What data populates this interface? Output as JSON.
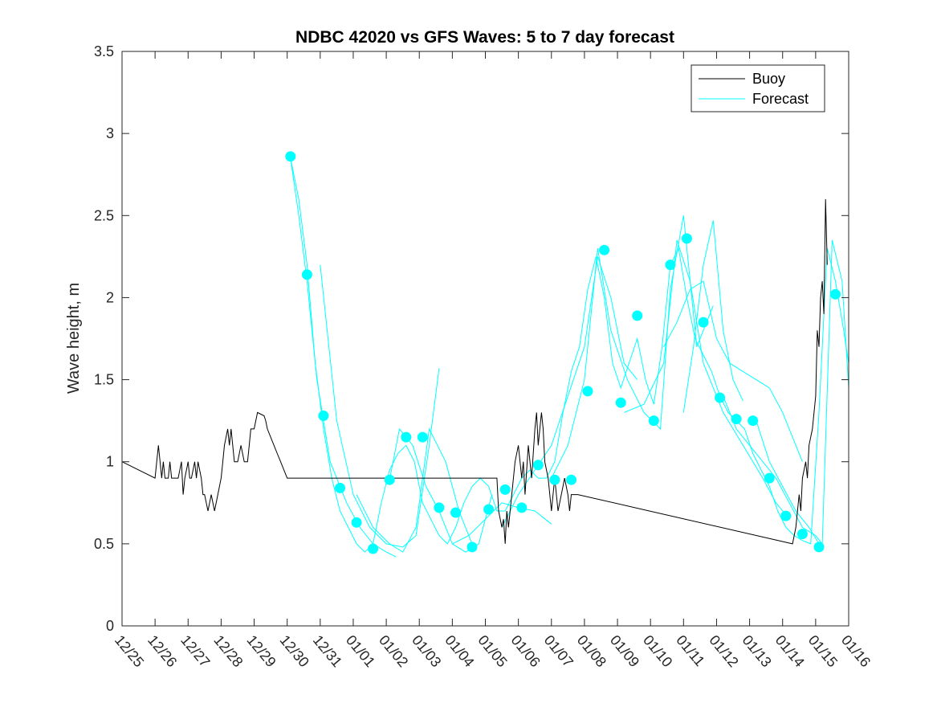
{
  "chart_data": {
    "type": "line",
    "title": "NDBC 42020 vs GFS Waves: 5 to 7 day forecast",
    "xlabel": "",
    "ylabel": "Wave height, m",
    "ylim": [
      0,
      3.5
    ],
    "yticks": [
      0,
      0.5,
      1,
      1.5,
      2,
      2.5,
      3,
      3.5
    ],
    "ytick_labels": [
      "0",
      "0.5",
      "1",
      "1.5",
      "2",
      "2.5",
      "3",
      "3.5"
    ],
    "xlim": [
      0,
      22
    ],
    "xtick_labels": [
      "12/25",
      "12/26",
      "12/27",
      "12/28",
      "12/29",
      "12/30",
      "12/31",
      "01/01",
      "01/02",
      "01/03",
      "01/04",
      "01/05",
      "01/06",
      "01/07",
      "01/08",
      "01/09",
      "01/10",
      "01/11",
      "01/12",
      "01/13",
      "01/14",
      "01/15",
      "01/16"
    ],
    "x_unit": "days since 12/25 00Z",
    "legend": {
      "position": "top-right",
      "entries": [
        "Buoy",
        "Forecast"
      ]
    },
    "colors": {
      "buoy": "#000000",
      "forecast": "#00ffff",
      "axis": "#262626"
    },
    "series": [
      {
        "name": "Buoy",
        "x": [
          0,
          1,
          1.05,
          1.1,
          1.2,
          1.25,
          1.3,
          1.4,
          1.45,
          1.5,
          1.6,
          1.7,
          1.8,
          1.85,
          1.9,
          2.0,
          2.05,
          2.1,
          2.2,
          2.25,
          2.3,
          2.4,
          2.45,
          2.5,
          2.6,
          2.7,
          2.8,
          2.9,
          3.0,
          3.05,
          3.1,
          3.2,
          3.25,
          3.3,
          3.4,
          3.5,
          3.6,
          3.7,
          3.8,
          3.85,
          3.9,
          4.0,
          4.1,
          4.2,
          4.3,
          4.35,
          4.4,
          4.5,
          4.6,
          4.7,
          4.8,
          4.9,
          5.0,
          11.35,
          11.4,
          11.5,
          11.55,
          11.6,
          11.65,
          11.7,
          11.8,
          11.9,
          12.0,
          12.1,
          12.15,
          12.2,
          12.3,
          12.4,
          12.5,
          12.55,
          12.6,
          12.7,
          12.75,
          12.8,
          12.9,
          13.0,
          13.05,
          13.1,
          13.2,
          13.3,
          13.4,
          13.5,
          13.55,
          13.6,
          13.7,
          13.8,
          20.3,
          20.4,
          20.5,
          20.55,
          20.6,
          20.7,
          20.75,
          20.8,
          20.9,
          21.0,
          21.05,
          21.1,
          21.15,
          21.2,
          21.25,
          21.3,
          21.35
        ],
        "values": [
          1.0,
          0.9,
          1.0,
          1.1,
          0.9,
          1.0,
          0.9,
          0.9,
          1.0,
          0.9,
          0.9,
          0.9,
          1.0,
          0.8,
          0.9,
          1.0,
          0.9,
          0.9,
          1.0,
          0.9,
          1.0,
          0.9,
          0.8,
          0.8,
          0.7,
          0.8,
          0.7,
          0.8,
          0.9,
          1.0,
          1.1,
          1.2,
          1.1,
          1.2,
          1.0,
          1.0,
          1.1,
          1.0,
          1.0,
          1.1,
          1.2,
          1.2,
          1.3,
          1.29,
          1.28,
          1.25,
          1.2,
          1.15,
          1.1,
          1.05,
          1.0,
          0.95,
          0.9,
          0.9,
          0.7,
          0.6,
          0.65,
          0.5,
          0.7,
          0.6,
          0.8,
          1.0,
          1.1,
          0.9,
          1.0,
          0.8,
          1.1,
          0.9,
          1.2,
          1.3,
          1.1,
          1.3,
          1.2,
          1.0,
          0.9,
          0.7,
          0.8,
          0.9,
          0.7,
          0.8,
          0.9,
          0.8,
          0.7,
          0.8,
          0.8,
          0.8,
          0.5,
          0.6,
          0.8,
          0.7,
          0.9,
          1.0,
          0.9,
          1.1,
          1.2,
          1.4,
          1.8,
          1.7,
          2.0,
          2.1,
          1.9,
          2.6,
          2.2
        ]
      },
      {
        "name": "Forecast",
        "x": [
          5.1,
          5.35,
          5.6,
          5.85,
          6.1,
          6.35,
          6.6,
          6.85,
          7.1,
          7.35,
          7.6,
          7.85,
          8.1,
          8.35,
          8.6,
          8.85,
          9.1,
          9.35,
          9.6,
          9.85,
          10.1,
          10.35,
          10.6,
          10.85,
          11.1,
          11.35,
          11.6,
          11.85,
          12.1,
          12.35,
          12.6,
          12.85,
          13.1,
          13.35,
          13.6,
          13.85,
          14.1,
          14.35,
          14.6,
          14.85,
          15.1,
          15.35,
          15.6,
          15.85,
          16.1,
          16.35,
          16.6,
          16.85,
          17.1,
          17.35,
          17.6,
          17.85,
          18.1,
          18.35,
          18.6,
          18.85,
          19.1,
          19.35,
          19.6,
          19.85,
          20.1,
          20.35,
          20.6,
          20.85,
          21.1,
          21.35,
          21.6,
          21.85,
          22.0
        ],
        "values": [
          2.85,
          2.6,
          2.2,
          1.6,
          1.2,
          0.9,
          0.7,
          0.6,
          0.5,
          0.45,
          0.5,
          0.75,
          0.95,
          1.05,
          1.1,
          1.0,
          0.75,
          0.65,
          0.55,
          0.5,
          0.6,
          0.75,
          0.85,
          0.9,
          0.85,
          0.7,
          0.7,
          0.8,
          0.9,
          0.95,
          0.9,
          0.9,
          1.0,
          1.3,
          1.55,
          1.7,
          2.05,
          2.25,
          2.0,
          1.6,
          1.45,
          1.6,
          1.75,
          1.5,
          1.35,
          1.7,
          2.2,
          2.3,
          2.0,
          1.75,
          1.65,
          1.55,
          1.4,
          1.3,
          1.25,
          1.2,
          1.05,
          0.95,
          0.85,
          0.7,
          0.6,
          0.55,
          0.52,
          0.5,
          1.3,
          2.3,
          2.1,
          1.8,
          1.6
        ]
      }
    ],
    "forecast_overlays": [
      {
        "x": [
          5.1,
          5.35,
          5.6,
          5.9,
          6.3,
          6.8,
          7.2,
          7.6,
          8.0,
          8.3
        ],
        "values": [
          2.85,
          2.5,
          2.1,
          1.5,
          1.0,
          0.75,
          0.6,
          0.5,
          0.45,
          0.42
        ]
      },
      {
        "x": [
          6.0,
          6.5,
          7.0,
          7.5,
          8.0,
          8.5,
          8.9,
          9.3,
          9.6
        ],
        "values": [
          2.2,
          1.25,
          0.8,
          0.6,
          0.5,
          0.48,
          0.55,
          1.1,
          1.57
        ]
      },
      {
        "x": [
          7.1,
          7.6,
          8.1,
          8.5,
          8.9,
          9.3,
          9.8,
          10.2,
          10.6
        ],
        "values": [
          0.8,
          0.6,
          0.5,
          0.45,
          0.6,
          1.2,
          1.0,
          0.7,
          0.5
        ]
      },
      {
        "x": [
          8.1,
          8.4,
          8.8,
          9.2,
          9.6,
          10.0,
          10.4,
          10.8,
          11.2
        ],
        "values": [
          0.89,
          1.2,
          1.1,
          0.85,
          0.7,
          0.5,
          0.45,
          0.5,
          0.8
        ]
      },
      {
        "x": [
          10.0,
          10.5,
          11.0,
          11.5,
          12.0,
          12.5,
          13.0
        ],
        "values": [
          0.5,
          0.55,
          0.65,
          0.75,
          0.72,
          0.7,
          0.62
        ]
      },
      {
        "x": [
          11.5,
          12.0,
          12.5,
          13.0,
          13.5,
          14.0,
          14.4,
          14.8,
          15.2,
          15.6
        ],
        "values": [
          0.6,
          0.8,
          0.95,
          1.1,
          1.4,
          1.7,
          2.25,
          2.0,
          1.6,
          1.5
        ]
      },
      {
        "x": [
          13.0,
          13.5,
          14.0,
          14.4,
          14.8,
          15.3,
          15.8,
          16.3,
          16.6,
          17.0,
          17.4,
          17.9
        ],
        "values": [
          0.9,
          1.1,
          1.5,
          2.3,
          1.8,
          1.5,
          1.3,
          1.2,
          2.05,
          2.5,
          1.7,
          1.95
        ]
      },
      {
        "x": [
          15.2,
          15.8,
          16.4,
          16.8,
          17.2,
          17.6,
          18.2,
          18.8,
          19.4,
          19.8,
          20.2
        ],
        "values": [
          1.3,
          1.35,
          1.6,
          2.35,
          2.1,
          1.6,
          1.3,
          1.1,
          0.9,
          0.75,
          0.65
        ]
      },
      {
        "x": [
          16.4,
          16.8,
          17.2,
          17.6,
          18.0,
          18.4,
          18.8,
          19.2,
          19.6,
          20.0,
          20.6
        ],
        "values": [
          1.7,
          1.85,
          2.05,
          2.1,
          1.75,
          1.6,
          1.55,
          1.5,
          1.45,
          1.3,
          1.0
        ]
      },
      {
        "x": [
          17.0,
          17.3,
          17.6,
          17.9,
          18.2,
          18.5,
          18.8
        ],
        "values": [
          1.3,
          1.7,
          2.2,
          2.47,
          1.8,
          1.5,
          1.37
        ]
      },
      {
        "x": [
          18.2,
          18.6,
          19.0,
          19.4,
          19.8,
          20.2,
          20.6,
          21.0,
          21.2,
          21.5,
          21.8,
          22.0
        ],
        "values": [
          1.4,
          1.2,
          1.1,
          1.0,
          0.9,
          0.75,
          0.6,
          0.55,
          0.5,
          2.35,
          2.1,
          1.45
        ]
      },
      {
        "x": [
          19.2,
          19.6,
          20.0,
          20.4,
          20.8,
          21.1
        ],
        "values": [
          1.25,
          1.0,
          0.85,
          0.7,
          0.6,
          0.5
        ]
      }
    ],
    "markers": {
      "x": [
        5.1,
        5.6,
        6.1,
        6.6,
        7.1,
        7.6,
        8.1,
        8.6,
        9.1,
        9.6,
        10.1,
        10.6,
        11.1,
        11.6,
        12.1,
        12.6,
        13.1,
        13.6,
        14.1,
        14.6,
        15.1,
        15.6,
        16.1,
        16.6,
        17.1,
        17.6,
        18.1,
        18.6,
        19.1,
        19.6,
        20.1,
        20.6,
        21.1,
        21.6
      ],
      "values": [
        2.86,
        2.14,
        1.28,
        0.84,
        0.63,
        0.47,
        0.89,
        1.15,
        1.15,
        0.72,
        0.69,
        0.48,
        0.71,
        0.83,
        0.72,
        0.98,
        0.89,
        0.89,
        1.43,
        2.29,
        1.36,
        1.89,
        1.25,
        2.2,
        2.36,
        1.85,
        1.39,
        1.26,
        1.25,
        0.9,
        0.67,
        0.56,
        0.48,
        2.02
      ]
    }
  }
}
